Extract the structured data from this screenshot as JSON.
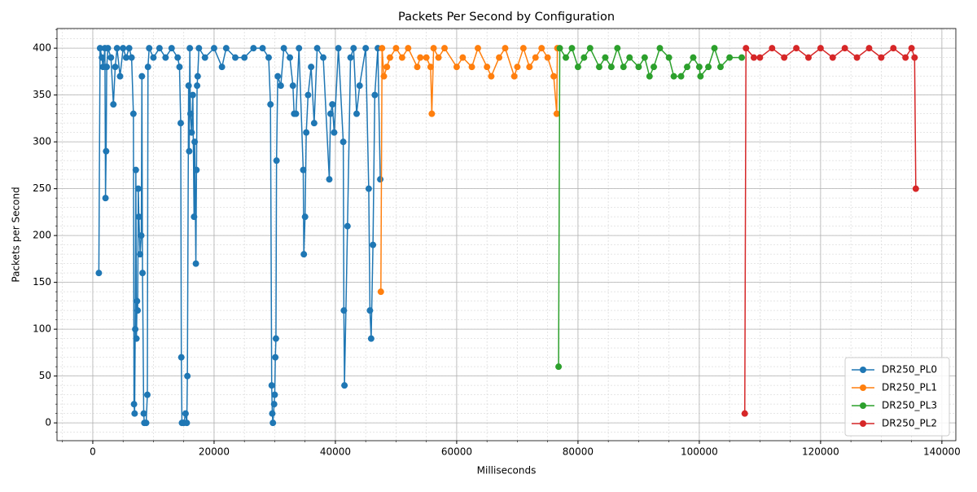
{
  "chart_data": {
    "type": "line",
    "title": "Packets Per Second by Configuration",
    "x_label": "Milliseconds",
    "y_label": "Packets per Second",
    "xlim": [
      -5900,
      142300
    ],
    "ylim": [
      -19,
      421
    ],
    "xticks": [
      0,
      20000,
      40000,
      60000,
      80000,
      100000,
      120000,
      140000
    ],
    "yticks": [
      0,
      50,
      100,
      150,
      200,
      250,
      300,
      350,
      400
    ],
    "grid": true,
    "minor_grid": true,
    "legend": "lower right",
    "series": [
      {
        "name": "DR250_PL0",
        "color": "#1f77b4",
        "x": [
          1000,
          1200,
          1500,
          1700,
          2000,
          2100,
          2200,
          2300,
          2500,
          3000,
          3400,
          3700,
          4000,
          4500,
          5000,
          5500,
          6000,
          6400,
          6700,
          6800,
          6900,
          7000,
          7100,
          7200,
          7300,
          7400,
          7500,
          7600,
          7800,
          8000,
          8100,
          8200,
          8400,
          8500,
          8800,
          9000,
          9100,
          9300,
          10000,
          11000,
          12000,
          13000,
          14000,
          14300,
          14500,
          14600,
          14700,
          15000,
          15300,
          15500,
          15600,
          15800,
          15900,
          16000,
          16100,
          16300,
          16500,
          16700,
          16800,
          17000,
          17100,
          17200,
          17300,
          17500,
          18500,
          20000,
          21300,
          22000,
          23500,
          25000,
          26500,
          28000,
          29000,
          29300,
          29500,
          29600,
          29700,
          29900,
          30000,
          30100,
          30200,
          30300,
          30500,
          31000,
          31500,
          32500,
          33000,
          33200,
          33500,
          34000,
          34700,
          34800,
          35000,
          35200,
          35500,
          36000,
          36500,
          37000,
          38000,
          39000,
          39200,
          39500,
          39800,
          40500,
          41300,
          41400,
          41500,
          42000,
          42500,
          43000,
          43500,
          44000,
          45000,
          45500,
          45700,
          45900,
          46200,
          46500,
          47000,
          47400
        ],
        "values": [
          160,
          400,
          390,
          380,
          400,
          240,
          290,
          380,
          400,
          390,
          340,
          380,
          400,
          370,
          400,
          390,
          400,
          390,
          330,
          20,
          10,
          100,
          270,
          90,
          130,
          120,
          250,
          220,
          180,
          200,
          370,
          160,
          10,
          0,
          0,
          30,
          380,
          400,
          390,
          400,
          390,
          400,
          390,
          380,
          320,
          70,
          0,
          0,
          10,
          0,
          50,
          360,
          290,
          400,
          330,
          310,
          350,
          220,
          300,
          170,
          270,
          360,
          370,
          400,
          390,
          400,
          380,
          400,
          390,
          390,
          400,
          400,
          390,
          340,
          40,
          10,
          0,
          20,
          30,
          70,
          90,
          280,
          370,
          360,
          400,
          390,
          360,
          330,
          330,
          400,
          270,
          180,
          220,
          310,
          350,
          380,
          320,
          400,
          390,
          260,
          330,
          340,
          310,
          400,
          300,
          120,
          40,
          210,
          390,
          400,
          330,
          360,
          400,
          250,
          120,
          90,
          190,
          350,
          400,
          260
        ]
      },
      {
        "name": "DR250_PL1",
        "color": "#ff7f0e",
        "x": [
          47500,
          47700,
          48000,
          48500,
          49000,
          50000,
          51000,
          52000,
          53500,
          54000,
          55000,
          55700,
          55900,
          56200,
          57000,
          58000,
          60000,
          61000,
          62500,
          63500,
          65000,
          65700,
          67000,
          68000,
          69500,
          70000,
          71000,
          72000,
          73000,
          74000,
          75000,
          76000,
          76500,
          76600
        ],
        "values": [
          140,
          400,
          370,
          380,
          390,
          400,
          390,
          400,
          380,
          390,
          390,
          380,
          330,
          400,
          390,
          400,
          380,
          390,
          380,
          400,
          380,
          370,
          390,
          400,
          370,
          380,
          400,
          380,
          390,
          400,
          390,
          370,
          330,
          400
        ]
      },
      {
        "name": "DR250_PL3",
        "color": "#2ca02c",
        "x": [
          76800,
          77000,
          78000,
          79000,
          80000,
          81000,
          82000,
          83500,
          84500,
          85500,
          86500,
          87500,
          88500,
          90000,
          91000,
          91800,
          92500,
          93500,
          95000,
          95800,
          97000,
          98000,
          99000,
          100000,
          100200,
          101500,
          102500,
          103500,
          105000,
          107000
        ],
        "values": [
          60,
          400,
          390,
          400,
          380,
          390,
          400,
          380,
          390,
          380,
          400,
          380,
          390,
          380,
          390,
          370,
          380,
          400,
          390,
          370,
          370,
          380,
          390,
          380,
          370,
          380,
          400,
          380,
          390,
          390
        ]
      },
      {
        "name": "DR250_PL2",
        "color": "#d62728",
        "x": [
          107500,
          107700,
          109000,
          110000,
          112000,
          114000,
          116000,
          118000,
          120000,
          122000,
          124000,
          126000,
          128000,
          130000,
          132000,
          134000,
          135000,
          135500,
          135700
        ],
        "values": [
          10,
          400,
          390,
          390,
          400,
          390,
          400,
          390,
          400,
          390,
          400,
          390,
          400,
          390,
          400,
          390,
          400,
          390,
          250
        ]
      }
    ]
  }
}
